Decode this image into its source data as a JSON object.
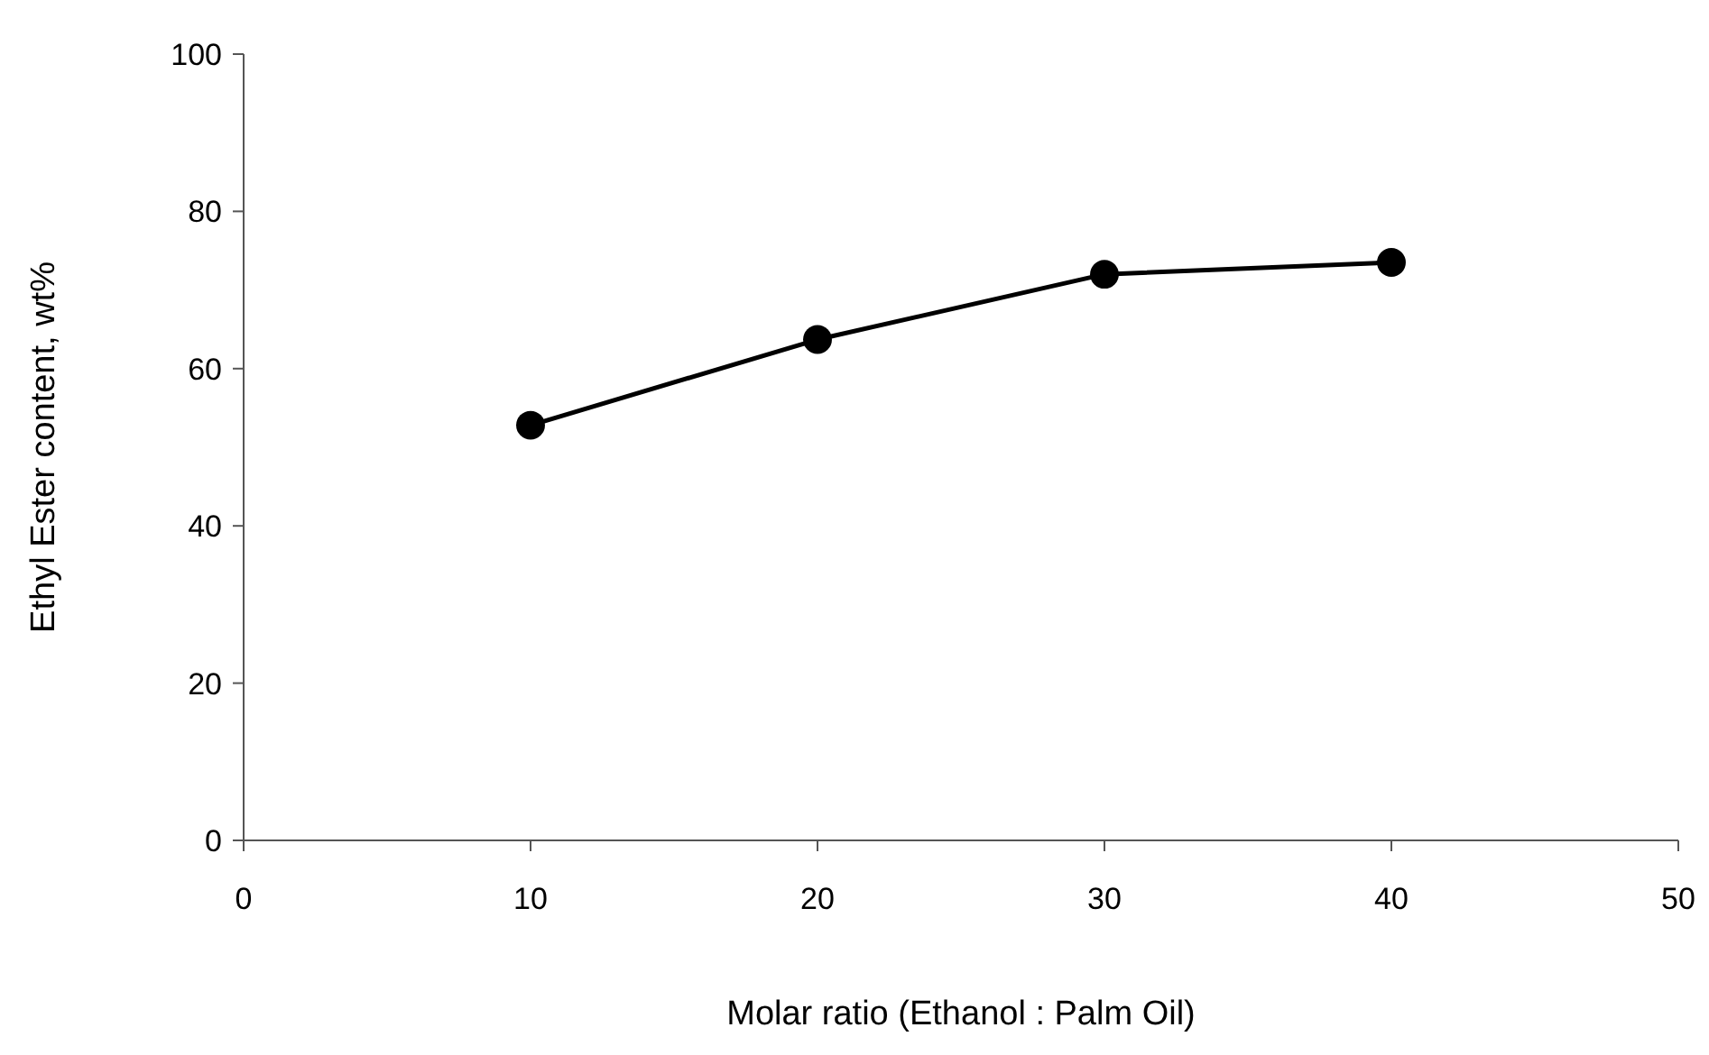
{
  "chart_data": {
    "type": "line",
    "xlabel": "Molar ratio (Ethanol : Palm Oil)",
    "ylabel": "Ethyl Ester content, wt%",
    "x": [
      10,
      20,
      30,
      40
    ],
    "series": [
      {
        "color": "#000000",
        "values": [
          52.8,
          63.7,
          72.0,
          73.5
        ]
      }
    ],
    "xlim": [
      0,
      50
    ],
    "xticks": [
      0,
      10,
      20,
      30,
      40,
      50
    ],
    "ylim": [
      0,
      100
    ],
    "yticks": [
      0,
      20,
      40,
      60,
      80,
      100
    ],
    "marker": "circle",
    "grid": false
  }
}
